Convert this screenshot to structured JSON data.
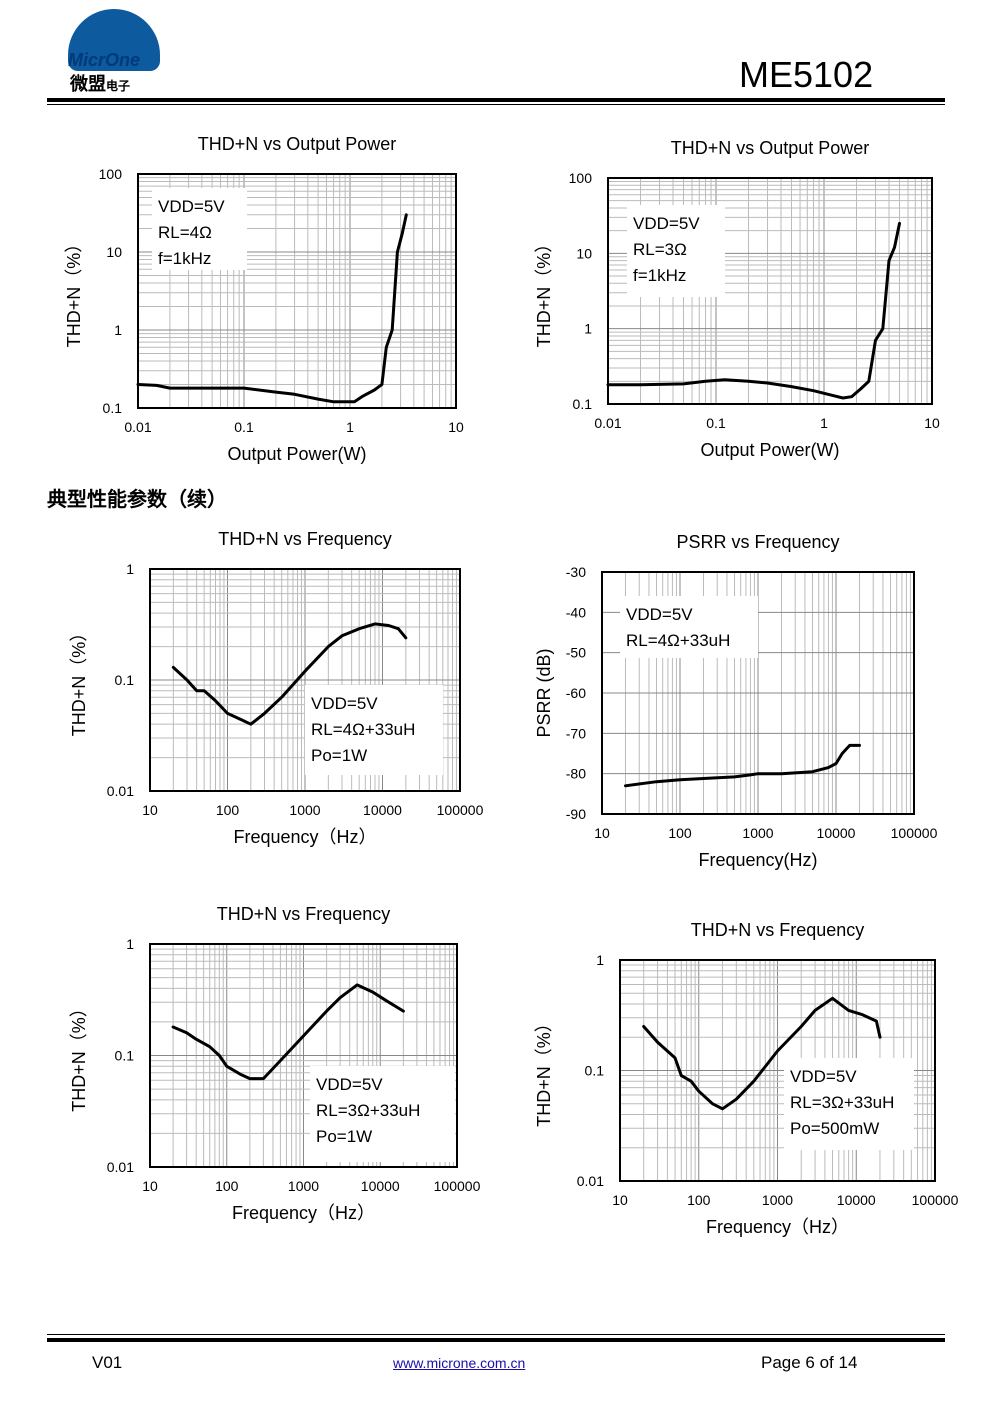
{
  "header": {
    "logo_en": "MicrOne",
    "logo_cn": "微盟",
    "logo_cn_small": "电子",
    "model": "ME5102"
  },
  "section_title": "典型性能参数（续）",
  "footer": {
    "version": "V01",
    "url": "www.microne.com.cn",
    "page": "Page 6 of 14"
  },
  "chart_data": [
    {
      "id": "c1",
      "type": "line",
      "title": "THD+N vs Output Power",
      "xlabel": "Output Power(W)",
      "ylabel": "THD+N（%）",
      "xscale": "log",
      "yscale": "log",
      "xlim": [
        0.01,
        10
      ],
      "ylim": [
        0.1,
        100
      ],
      "xticks": [
        "0.01",
        "0.1",
        "1",
        "10"
      ],
      "yticks": [
        "0.1",
        "1",
        "10",
        "100"
      ],
      "annotation": [
        "VDD=5V",
        "RL=4Ω",
        "f=1kHz"
      ],
      "series": [
        {
          "x": [
            0.01,
            0.015,
            0.02,
            0.05,
            0.1,
            0.2,
            0.3,
            0.5,
            0.7,
            1.0,
            1.1,
            1.3,
            1.7,
            2.0,
            2.2,
            2.5,
            2.8,
            3.1,
            3.4
          ],
          "y": [
            0.2,
            0.195,
            0.18,
            0.18,
            0.18,
            0.16,
            0.15,
            0.13,
            0.12,
            0.12,
            0.12,
            0.14,
            0.17,
            0.2,
            0.6,
            1.0,
            10,
            17,
            30
          ]
        }
      ]
    },
    {
      "id": "c2",
      "type": "line",
      "title": "THD+N vs Output Power",
      "xlabel": "Output Power(W)",
      "ylabel": "THD+N（%）",
      "xscale": "log",
      "yscale": "log",
      "xlim": [
        0.01,
        10
      ],
      "ylim": [
        0.1,
        100
      ],
      "xticks": [
        "0.01",
        "0.1",
        "1",
        "10"
      ],
      "yticks": [
        "0.1",
        "1",
        "10",
        "100"
      ],
      "annotation": [
        "VDD=5V",
        "RL=3Ω",
        "f=1kHz"
      ],
      "series": [
        {
          "x": [
            0.01,
            0.02,
            0.05,
            0.08,
            0.12,
            0.2,
            0.3,
            0.5,
            0.8,
            1.2,
            1.5,
            1.8,
            2.2,
            2.6,
            3.0,
            3.5,
            4.0,
            4.5,
            5.0
          ],
          "y": [
            0.18,
            0.18,
            0.185,
            0.2,
            0.21,
            0.2,
            0.19,
            0.17,
            0.15,
            0.13,
            0.12,
            0.125,
            0.16,
            0.2,
            0.7,
            1.0,
            8,
            12,
            25
          ]
        }
      ]
    },
    {
      "id": "c3",
      "type": "line",
      "title": "THD+N vs Frequency",
      "xlabel": "Frequency（Hz）",
      "ylabel": "THD+N（%）",
      "xscale": "log",
      "yscale": "log",
      "xlim": [
        10,
        100000
      ],
      "ylim": [
        0.01,
        1
      ],
      "xticks": [
        "10",
        "100",
        "1000",
        "10000",
        "100000"
      ],
      "yticks": [
        "0.01",
        "0.1",
        "1"
      ],
      "annotation": [
        "VDD=5V",
        "RL=4Ω+33uH",
        "Po=1W"
      ],
      "series": [
        {
          "x": [
            20,
            30,
            40,
            50,
            70,
            100,
            150,
            200,
            300,
            500,
            1000,
            2000,
            3000,
            5000,
            8000,
            12000,
            16000,
            20000
          ],
          "y": [
            0.13,
            0.1,
            0.08,
            0.08,
            0.065,
            0.05,
            0.044,
            0.04,
            0.05,
            0.07,
            0.12,
            0.2,
            0.25,
            0.29,
            0.32,
            0.31,
            0.29,
            0.24
          ]
        }
      ]
    },
    {
      "id": "c4",
      "type": "line",
      "title": "PSRR vs Frequency",
      "xlabel": "Frequency(Hz)",
      "ylabel": "PSRR (dB)",
      "xscale": "log",
      "yscale": "linear",
      "xlim": [
        10,
        100000
      ],
      "ylim": [
        -90,
        -30
      ],
      "xticks": [
        "10",
        "100",
        "1000",
        "10000",
        "100000"
      ],
      "yticks": [
        "-30",
        "-40",
        "-50",
        "-60",
        "-70",
        "-80",
        "-90"
      ],
      "annotation": [
        "VDD=5V",
        "RL=4Ω+33uH"
      ],
      "series": [
        {
          "x": [
            20,
            50,
            100,
            200,
            500,
            800,
            1000,
            2000,
            5000,
            8000,
            10000,
            12000,
            15000,
            20000
          ],
          "y": [
            -83,
            -82,
            -81.5,
            -81.2,
            -80.8,
            -80.3,
            -80,
            -80,
            -79.5,
            -78.5,
            -77.5,
            -75,
            -73,
            -73
          ]
        }
      ]
    },
    {
      "id": "c5",
      "type": "line",
      "title": "THD+N vs Frequency",
      "xlabel": "Frequency（Hz）",
      "ylabel": "THD+N（%）",
      "xscale": "log",
      "yscale": "log",
      "xlim": [
        10,
        100000
      ],
      "ylim": [
        0.01,
        1
      ],
      "xticks": [
        "10",
        "100",
        "1000",
        "10000",
        "100000"
      ],
      "yticks": [
        "0.01",
        "0.1",
        "1"
      ],
      "annotation": [
        "VDD=5V",
        "RL=3Ω+33uH",
        "Po=1W"
      ],
      "series": [
        {
          "x": [
            20,
            30,
            40,
            60,
            80,
            100,
            150,
            200,
            300,
            500,
            1000,
            2000,
            3000,
            5000,
            8000,
            12000,
            20000
          ],
          "y": [
            0.18,
            0.16,
            0.14,
            0.12,
            0.1,
            0.08,
            0.068,
            0.062,
            0.062,
            0.09,
            0.15,
            0.25,
            0.33,
            0.43,
            0.37,
            0.31,
            0.25
          ]
        }
      ]
    },
    {
      "id": "c6",
      "type": "line",
      "title": "THD+N vs Frequency",
      "xlabel": "Frequency（Hz）",
      "ylabel": "THD+N（%）",
      "xscale": "log",
      "yscale": "log",
      "xlim": [
        10,
        100000
      ],
      "ylim": [
        0.01,
        1
      ],
      "xticks": [
        "10",
        "100",
        "1000",
        "10000",
        "100000"
      ],
      "yticks": [
        "0.01",
        "0.1",
        "1"
      ],
      "annotation": [
        "VDD=5V",
        "RL=3Ω+33uH",
        "Po=500mW"
      ],
      "series": [
        {
          "x": [
            20,
            30,
            50,
            60,
            80,
            100,
            150,
            200,
            300,
            500,
            1000,
            2000,
            3000,
            5000,
            8000,
            12000,
            18000,
            20000
          ],
          "y": [
            0.25,
            0.18,
            0.13,
            0.09,
            0.08,
            0.065,
            0.05,
            0.045,
            0.055,
            0.08,
            0.15,
            0.25,
            0.35,
            0.45,
            0.35,
            0.32,
            0.28,
            0.2
          ]
        }
      ]
    }
  ]
}
